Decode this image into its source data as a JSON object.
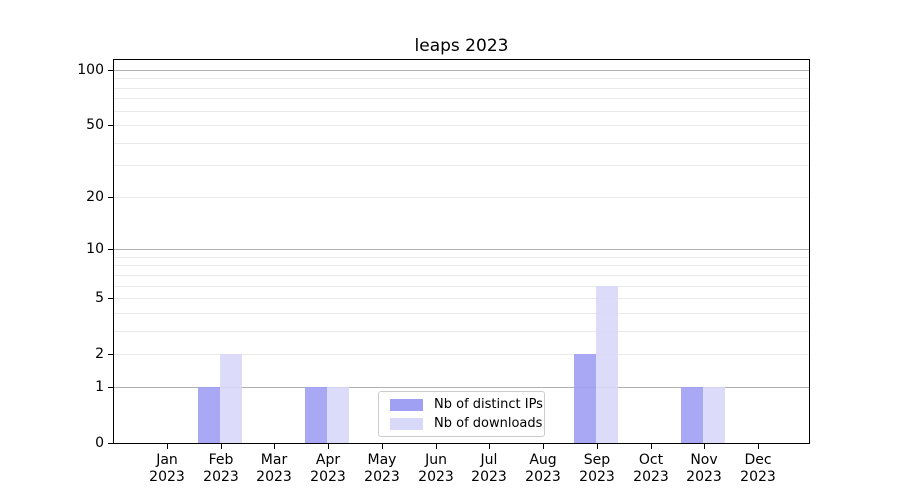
{
  "colors": {
    "background": "#ffffff",
    "spine": "#000000",
    "major_grid": "#b0b0b0",
    "minor_grid": "#e9e9e9",
    "tick_text": "#000000",
    "legend_border": "#cccccc"
  },
  "chart_data": {
    "type": "bar",
    "title": "leaps 2023",
    "categories": [
      "Jan 2023",
      "Feb 2023",
      "Mar 2023",
      "Apr 2023",
      "May 2023",
      "Jun 2023",
      "Jul 2023",
      "Aug 2023",
      "Sep 2023",
      "Oct 2023",
      "Nov 2023",
      "Dec 2023"
    ],
    "x_tick_month": [
      "Jan",
      "Feb",
      "Mar",
      "Apr",
      "May",
      "Jun",
      "Jul",
      "Aug",
      "Sep",
      "Oct",
      "Nov",
      "Dec"
    ],
    "x_tick_year": "2023",
    "series": [
      {
        "name": "Nb of distinct IPs",
        "key": "distinct-ips",
        "color": "#9f9ff3",
        "values": [
          0,
          1,
          0,
          1,
          0,
          0,
          0,
          0,
          2,
          0,
          1,
          0
        ]
      },
      {
        "name": "Nb of downloads",
        "key": "downloads",
        "color": "#d8d8f9",
        "values": [
          0,
          2,
          0,
          1,
          0,
          0,
          0,
          0,
          6,
          0,
          1,
          0
        ]
      }
    ],
    "bar_opacity": 0.9,
    "y_axis": {
      "scale": "log1p",
      "ticks": [
        0,
        1,
        2,
        5,
        10,
        20,
        50,
        100
      ],
      "major_gridlines": [
        1,
        10,
        100
      ],
      "minor_gridlines": [
        2,
        3,
        4,
        5,
        6,
        7,
        8,
        9,
        20,
        30,
        40,
        50,
        60,
        70,
        80,
        90
      ],
      "lim": [
        0,
        100
      ]
    },
    "legend": {
      "position": "lower center"
    },
    "grid": true
  }
}
